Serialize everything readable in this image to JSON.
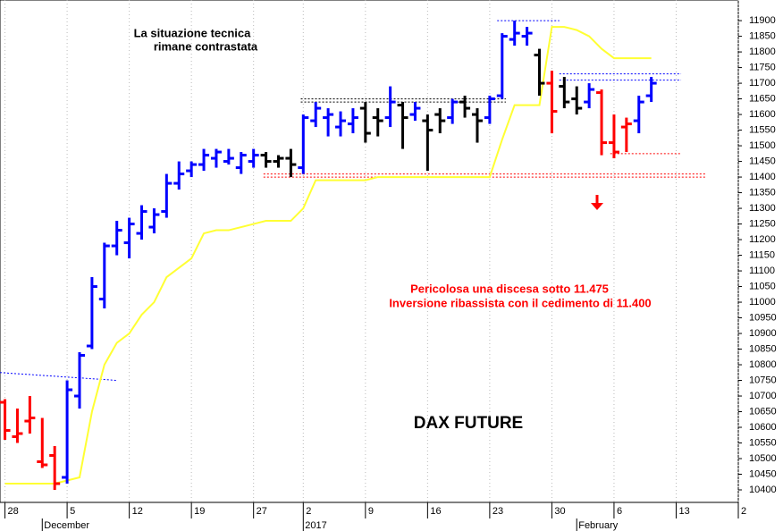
{
  "chart_data": {
    "type": "ohlc",
    "title": "DAX FUTURE",
    "annotations": [
      "La situazione tecnica",
      "rimane contrastata",
      "Pericolosa una discesa sotto 11.475",
      "Inversione ribassista con il cedimento di 11.400"
    ],
    "annotation_colors": [
      "#000000",
      "#000000",
      "#ff0000",
      "#ff0000"
    ],
    "ylim": [
      10360,
      11966
    ],
    "yticks": [
      10400,
      10450,
      10500,
      10550,
      10600,
      10650,
      10700,
      10750,
      10800,
      10850,
      10900,
      10950,
      11000,
      11050,
      11100,
      11150,
      11200,
      11250,
      11300,
      11350,
      11400,
      11450,
      11500,
      11550,
      11600,
      11650,
      11700,
      11750,
      11800,
      11850,
      11900
    ],
    "xlim": [
      -0.4,
      59
    ],
    "xticks": [
      {
        "value": 0,
        "label": "28"
      },
      {
        "value": 5,
        "label": "5"
      },
      {
        "value": 10,
        "label": "12"
      },
      {
        "value": 15,
        "label": "19"
      },
      {
        "value": 20,
        "label": "27"
      },
      {
        "value": 24,
        "label": "2"
      },
      {
        "value": 29,
        "label": "9"
      },
      {
        "value": 34,
        "label": "16"
      },
      {
        "value": 39,
        "label": "23"
      },
      {
        "value": 44,
        "label": "30"
      },
      {
        "value": 49,
        "label": "6"
      },
      {
        "value": 54,
        "label": "13"
      },
      {
        "value": 59,
        "label": "2"
      }
    ],
    "periods": [
      {
        "value": 3,
        "label": "December"
      },
      {
        "value": 24,
        "label": "2017"
      },
      {
        "value": 46,
        "label": "February"
      }
    ],
    "grid": true,
    "open": [
      10680,
      10570,
      10620,
      10490,
      10510,
      10440,
      10700,
      10860,
      11010,
      11180,
      11190,
      11220,
      11240,
      11290,
      11380,
      11420,
      11440,
      11460,
      11450,
      11430,
      11450,
      11470,
      11450,
      11460,
      11430,
      11580,
      11590,
      11560,
      11570,
      11620,
      11590,
      11590,
      11630,
      11600,
      11580,
      11600,
      11590,
      11640,
      11600,
      11590,
      11660,
      11840,
      11850,
      11790,
      11700,
      11690,
      11650,
      11640,
      11670,
      11510,
      11560,
      11580,
      11660
    ],
    "high": [
      10690,
      10660,
      10700,
      10630,
      10540,
      10750,
      10840,
      11080,
      11190,
      11260,
      11270,
      11310,
      11300,
      11410,
      11450,
      11450,
      11490,
      11490,
      11490,
      11480,
      11490,
      11480,
      11470,
      11490,
      11600,
      11640,
      11620,
      11610,
      11620,
      11640,
      11620,
      11690,
      11640,
      11640,
      11600,
      11620,
      11650,
      11660,
      11620,
      11660,
      11860,
      11900,
      11880,
      11810,
      11740,
      11720,
      11690,
      11700,
      11680,
      11600,
      11590,
      11660,
      11720
    ],
    "low": [
      10560,
      10550,
      10580,
      10470,
      10400,
      10420,
      10660,
      10850,
      10980,
      11150,
      11140,
      11200,
      11220,
      11270,
      11360,
      11400,
      11420,
      11430,
      11440,
      11410,
      11430,
      11430,
      11430,
      11400,
      11410,
      11560,
      11530,
      11530,
      11540,
      11510,
      11530,
      11560,
      11490,
      11580,
      11420,
      11540,
      11570,
      11590,
      11510,
      11570,
      11650,
      11820,
      11820,
      11660,
      11540,
      11620,
      11600,
      11620,
      11470,
      11460,
      11480,
      11540,
      11640
    ],
    "close": [
      10590,
      10580,
      10630,
      10480,
      10420,
      10720,
      10830,
      11050,
      11180,
      11230,
      11250,
      11290,
      11280,
      11380,
      11410,
      11440,
      11470,
      11480,
      11460,
      11470,
      11470,
      11450,
      11460,
      11440,
      11590,
      11620,
      11600,
      11580,
      11590,
      11540,
      11580,
      11640,
      11590,
      11620,
      11550,
      11580,
      11640,
      11620,
      11580,
      11650,
      11850,
      11860,
      11860,
      11700,
      11610,
      11640,
      11620,
      11680,
      11510,
      11480,
      11570,
      11640,
      11700
    ],
    "colors": [
      "#ff0000",
      "#ff0000",
      "#ff0000",
      "#ff0000",
      "#ff0000",
      "#0000ff",
      "#0000ff",
      "#0000ff",
      "#0000ff",
      "#0000ff",
      "#0000ff",
      "#0000ff",
      "#0000ff",
      "#0000ff",
      "#0000ff",
      "#0000ff",
      "#0000ff",
      "#0000ff",
      "#0000ff",
      "#0000ff",
      "#0000ff",
      "#000000",
      "#000000",
      "#000000",
      "#0000ff",
      "#0000ff",
      "#0000ff",
      "#0000ff",
      "#0000ff",
      "#000000",
      "#000000",
      "#0000ff",
      "#000000",
      "#0000ff",
      "#000000",
      "#000000",
      "#0000ff",
      "#000000",
      "#000000",
      "#0000ff",
      "#0000ff",
      "#0000ff",
      "#0000ff",
      "#000000",
      "#ff0000",
      "#000000",
      "#000000",
      "#0000ff",
      "#ff0000",
      "#ff0000",
      "#ff0000",
      "#0000ff",
      "#0000ff"
    ],
    "overlay": {
      "color": "#ffff33",
      "values": [
        10420,
        10420,
        10420,
        10420,
        10420,
        10430,
        10440,
        10650,
        10800,
        10870,
        10900,
        10960,
        11000,
        11080,
        11110,
        11140,
        11220,
        11230,
        11230,
        11240,
        11250,
        11260,
        11260,
        11260,
        11300,
        11390,
        11390,
        11390,
        11390,
        11390,
        11400,
        11400,
        11400,
        11400,
        11400,
        11400,
        11400,
        11400,
        11400,
        11400,
        11520,
        11630,
        11630,
        11630,
        11880,
        11880,
        11870,
        11850,
        11810,
        11780,
        11780,
        11780,
        11780
      ]
    },
    "levels": [
      {
        "color": "#0000ff",
        "y": [
          10775,
          10750
        ],
        "x": [
          -0.4,
          9
        ]
      },
      {
        "color": "#000000",
        "y": [
          11650,
          11650
        ],
        "x": [
          23.8,
          40.3
        ]
      },
      {
        "color": "#000000",
        "y": [
          11640,
          11640
        ],
        "x": [
          23.8,
          40.3
        ]
      },
      {
        "color": "#ff0000",
        "y": [
          11410,
          11410
        ],
        "x": [
          20.8,
          56.4
        ]
      },
      {
        "color": "#ff0000",
        "y": [
          11400,
          11400
        ],
        "x": [
          20.8,
          56.4
        ]
      },
      {
        "color": "#0000ff",
        "y": [
          11900,
          11900
        ],
        "x": [
          39.6,
          44.6
        ]
      },
      {
        "color": "#0000ff",
        "y": [
          11730,
          11730
        ],
        "x": [
          44.6,
          54.4
        ]
      },
      {
        "color": "#0000ff",
        "y": [
          11710,
          11710
        ],
        "x": [
          44.6,
          54.4
        ]
      },
      {
        "color": "#ff0000",
        "y": [
          11475,
          11475
        ],
        "x": [
          48.7,
          54.4
        ]
      }
    ]
  }
}
